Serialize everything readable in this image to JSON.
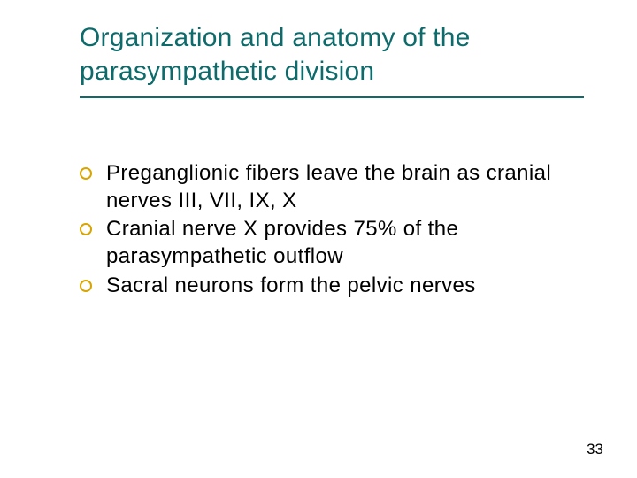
{
  "slide": {
    "title": "Organization and anatomy of the parasympathetic division",
    "title_color": "#0d6b6b",
    "rule_color": "#0d6b6b",
    "bullet_border_color": "#d9a400",
    "body_color": "#000000",
    "background_color": "#ffffff",
    "title_fontsize": 30,
    "body_fontsize": 24,
    "bullets": [
      "Preganglionic fibers leave the brain as cranial nerves III, VII, IX, X",
      "Cranial nerve X provides 75% of the parasympathetic outflow",
      "Sacral neurons form the pelvic nerves"
    ],
    "page_number": "33"
  }
}
